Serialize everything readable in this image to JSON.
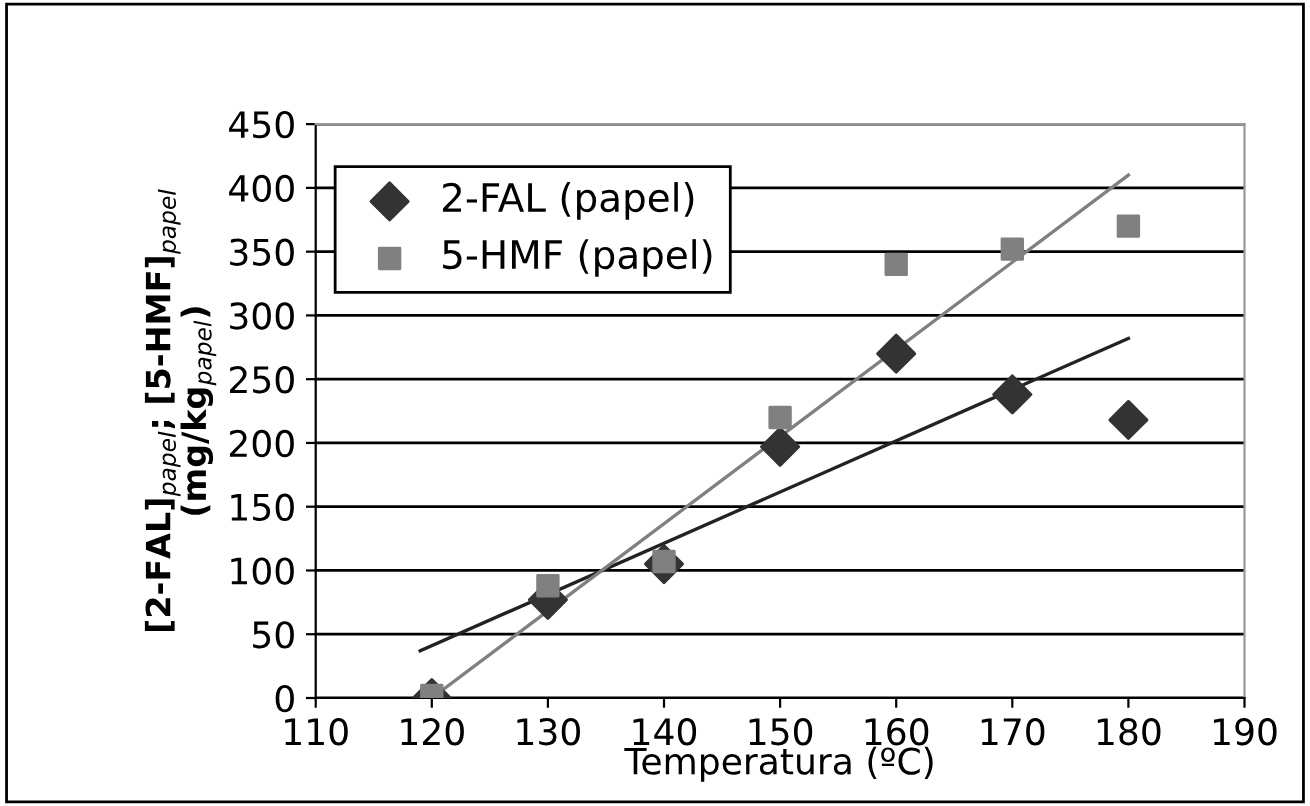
{
  "chart_data": {
    "type": "scatter",
    "xlabel": "Temperatura (ºC)",
    "ylabel": "[2-FAL]$_{papel}$; [5-HMF]$_{papel}$\n(mg/kg$_{papel}$)",
    "x": [
      120,
      130,
      140,
      150,
      160,
      170,
      180
    ],
    "series": [
      {
        "name": "2-FAL (papel)",
        "color": "#333333",
        "marker": "diamond",
        "values": [
          0,
          77,
          105,
          197,
          270,
          238,
          218
        ]
      },
      {
        "name": "5-HMF (papel)",
        "color": "#808080",
        "marker": "square",
        "values": [
          2,
          88,
          107,
          220,
          340,
          352,
          370
        ]
      },
      {
        "type": "line",
        "color": "#222222",
        "x": [
          119,
          180
        ],
        "values": [
          37,
          282
        ]
      },
      {
        "type": "line",
        "color": "#808080",
        "x": [
          120,
          180
        ],
        "values": [
          0,
          410
        ]
      }
    ],
    "xlim": [
      110,
      190
    ],
    "xticks": [
      110,
      120,
      130,
      140,
      150,
      160,
      170,
      180,
      190
    ],
    "ylim": [
      0,
      450
    ],
    "yticks": [
      0,
      50,
      100,
      150,
      200,
      250,
      300,
      350,
      400,
      450
    ],
    "grid": "y",
    "legend": "top left"
  }
}
